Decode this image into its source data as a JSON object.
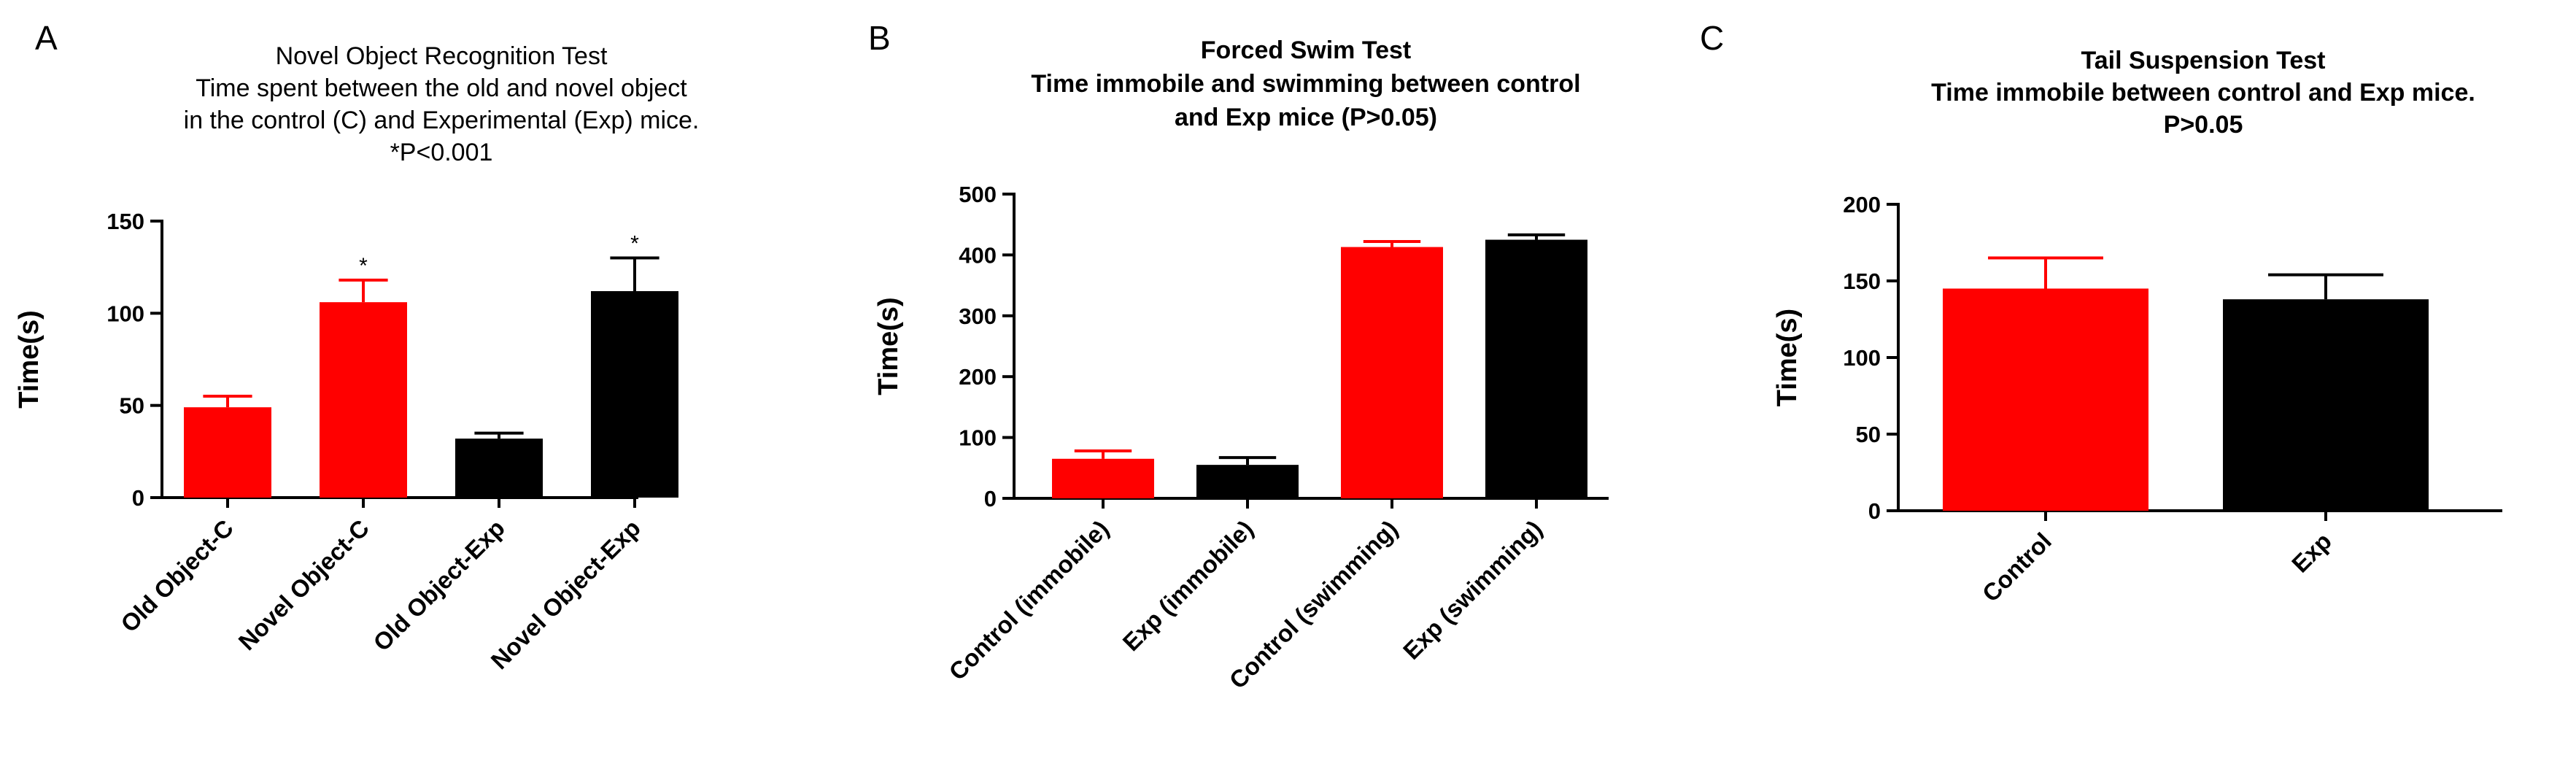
{
  "colors": {
    "red": "#ff0000",
    "black": "#000000",
    "axis": "#000000"
  },
  "chart_data": [
    {
      "panel_label": "A",
      "type": "bar",
      "title_lines": [
        "Novel Object Recognition Test",
        "Time spent between the old and novel object",
        "in the control (C) and Experimental (Exp) mice.",
        "*P<0.001"
      ],
      "ylabel": "Time(s)",
      "xlabel": "",
      "ylim": [
        0,
        150
      ],
      "yticks": [
        0,
        50,
        100,
        150
      ],
      "grid": false,
      "categories": [
        "Old Object-C",
        "Novel Object-C",
        "Old Object-Exp",
        "Novel Object-Exp"
      ],
      "values": [
        49,
        106,
        32,
        112
      ],
      "errors": [
        6,
        12,
        3,
        18
      ],
      "bar_colors": [
        "red",
        "red",
        "black",
        "black"
      ],
      "annotations": [
        "",
        "*",
        "",
        "*"
      ]
    },
    {
      "panel_label": "B",
      "type": "bar",
      "title_lines": [
        "Forced Swim Test",
        "Time immobile and swimming between control",
        "and Exp mice (P>0.05)"
      ],
      "ylabel": "Time(s)",
      "xlabel": "",
      "ylim": [
        0,
        500
      ],
      "yticks": [
        0,
        100,
        200,
        300,
        400,
        500
      ],
      "grid": false,
      "categories": [
        "Control (immobile)",
        "Exp (immobile)",
        "Control (swimming)",
        "Exp (swimming)"
      ],
      "values": [
        65,
        55,
        413,
        425
      ],
      "errors": [
        13,
        12,
        9,
        8
      ],
      "bar_colors": [
        "red",
        "black",
        "red",
        "black"
      ],
      "annotations": [
        "",
        "",
        "",
        ""
      ]
    },
    {
      "panel_label": "C",
      "type": "bar",
      "title_lines": [
        "Tail Suspension Test",
        "Time immobile between control and Exp mice.",
        "P>0.05"
      ],
      "ylabel": "Time(s)",
      "xlabel": "",
      "ylim": [
        0,
        200
      ],
      "yticks": [
        0,
        50,
        100,
        150,
        200
      ],
      "grid": false,
      "categories": [
        "Control",
        "Exp"
      ],
      "values": [
        145,
        138
      ],
      "errors": [
        20,
        16
      ],
      "bar_colors": [
        "red",
        "black"
      ],
      "annotations": [
        "",
        ""
      ]
    }
  ]
}
